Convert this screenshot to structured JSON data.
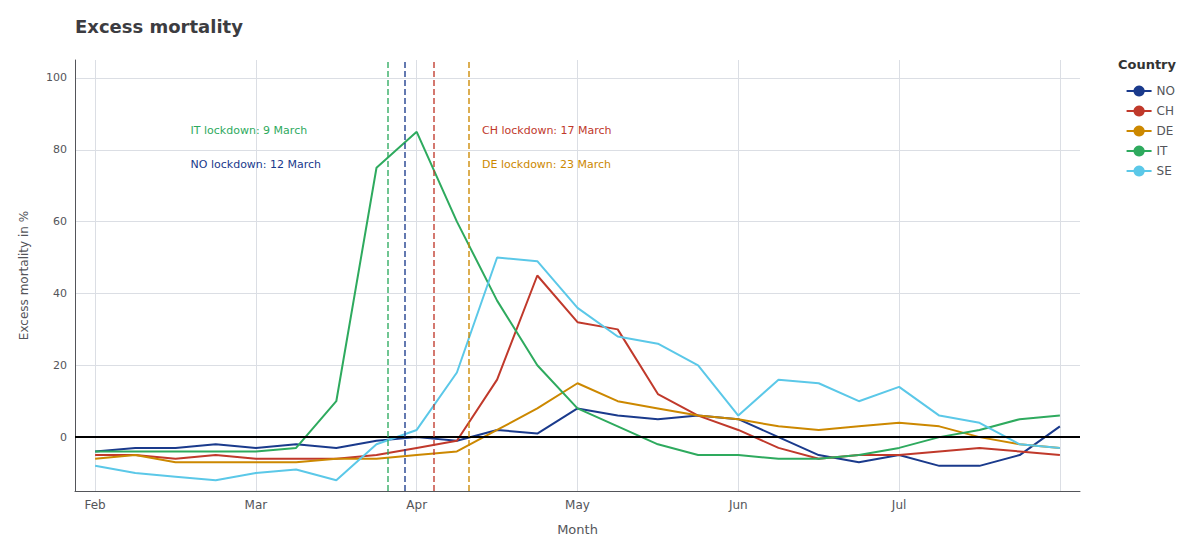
{
  "chart_data": {
    "type": "line",
    "title": "Excess mortality",
    "xlabel": "Month",
    "ylabel": "Excess mortality in %",
    "x": [
      1,
      2,
      3,
      4,
      5,
      6,
      7,
      8,
      9,
      10,
      11,
      12,
      13,
      14,
      15,
      16,
      17,
      18,
      19,
      20,
      21,
      22,
      23,
      24,
      25
    ],
    "series": [
      {
        "name": "NO",
        "color": "#1a3a8c",
        "values": [
          -4,
          -3,
          -3,
          -2,
          -3,
          -2,
          -3,
          -1,
          0,
          -1,
          2,
          1,
          8,
          6,
          5,
          6,
          5,
          0,
          -5,
          -7,
          -5,
          -8,
          -8,
          -5,
          3
        ]
      },
      {
        "name": "CH",
        "color": "#c0392b",
        "values": [
          -5,
          -5,
          -6,
          -5,
          -6,
          -6,
          -6,
          -5,
          -3,
          -1,
          16,
          45,
          32,
          30,
          12,
          6,
          2,
          -3,
          -6,
          -5,
          -5,
          -4,
          -3,
          -4,
          -5
        ]
      },
      {
        "name": "DE",
        "color": "#cc8800",
        "values": [
          -6,
          -5,
          -7,
          -7,
          -7,
          -7,
          -6,
          -6,
          -5,
          -4,
          2,
          8,
          15,
          10,
          8,
          6,
          5,
          3,
          2,
          3,
          4,
          3,
          0,
          -2,
          -3
        ]
      },
      {
        "name": "IT",
        "color": "#2eaa5e",
        "values": [
          -4,
          -4,
          -4,
          -4,
          -4,
          -3,
          10,
          75,
          85,
          60,
          38,
          20,
          8,
          3,
          -2,
          -5,
          -5,
          -6,
          -6,
          -5,
          -3,
          0,
          2,
          5,
          6
        ]
      },
      {
        "name": "SE",
        "color": "#5bc8e8",
        "values": [
          -8,
          -10,
          -11,
          -12,
          -10,
          -9,
          -12,
          -2,
          2,
          18,
          50,
          49,
          36,
          28,
          26,
          20,
          6,
          16,
          15,
          10,
          14,
          6,
          4,
          -2,
          -3
        ]
      }
    ],
    "xlim": [
      0.5,
      25.5
    ],
    "xticks": [
      {
        "value": 1,
        "label": "Feb"
      },
      {
        "value": 5,
        "label": "Mar"
      },
      {
        "value": 9,
        "label": "Apr"
      },
      {
        "value": 13,
        "label": "May"
      },
      {
        "value": 17,
        "label": "Jun"
      },
      {
        "value": 21,
        "label": "Jul"
      },
      {
        "value": 25,
        "label": null
      }
    ],
    "ylim": [
      -15,
      105
    ],
    "yticks": [
      0,
      20,
      40,
      60,
      80,
      100
    ],
    "grid": true,
    "legend": "upper right",
    "legend_title": "Country",
    "hlines": [
      {
        "y": 0,
        "color": "#000000"
      }
    ],
    "vlines": [
      {
        "x": 8.29,
        "color": "#2eaa5e",
        "line_style": "dashed"
      },
      {
        "x": 8.71,
        "color": "#1a3a8c",
        "line_style": "dashed"
      },
      {
        "x": 9.43,
        "color": "#c0392b",
        "line_style": "dashed"
      },
      {
        "x": 10.29,
        "color": "#cc8800",
        "line_style": "dashed"
      }
    ],
    "annotations": [
      {
        "text": "IT lockdown: 9 March",
        "color": "#2eaa5e"
      },
      {
        "text": "NO lockdown: 12 March",
        "color": "#1a3a8c"
      },
      {
        "text": "CH lockdown: 17 March",
        "color": "#c0392b"
      },
      {
        "text": "DE lockdown: 23 March",
        "color": "#cc8800"
      }
    ]
  }
}
